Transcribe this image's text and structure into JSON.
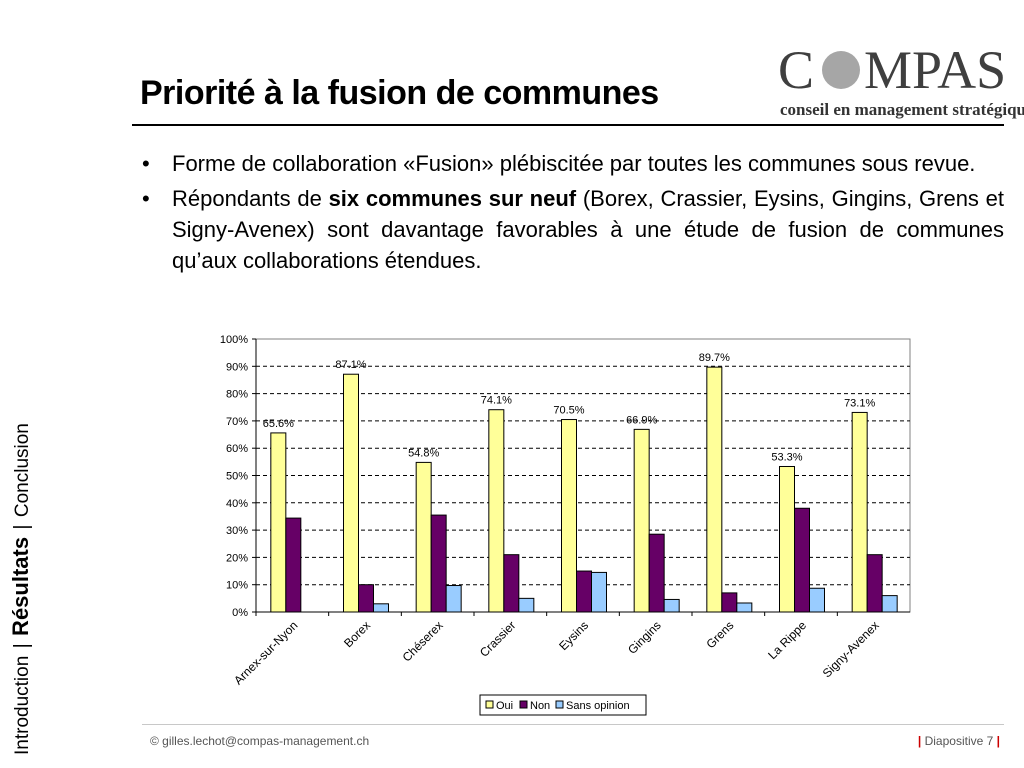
{
  "slide": {
    "title": "Priorité à la fusion de communes",
    "logo": {
      "wordmark": "COMPAS",
      "tagline": "conseil en management stratégique"
    },
    "bullets": [
      {
        "text_before": "Forme de collaboration «Fusion» plébiscitée par toutes les communes sous revue.",
        "bold": "",
        "text_after": ""
      },
      {
        "text_before": "Répondants de ",
        "bold": "six communes sur neuf",
        "text_after": " (Borex, Crassier, Eysins, Gingins, Grens et Signy-Avenex) sont davantage favorables à une étude de fusion de communes qu’aux collaborations étendues."
      }
    ],
    "bullet_glyph": "•",
    "side_nav": {
      "left": "Introduction",
      "active": "Résultats",
      "right": "Conclusion",
      "separator": "|"
    },
    "footer": {
      "contact": "© gilles.lechot@compas-management.ch",
      "slide_label": "Diapositive 7",
      "separator": "|"
    }
  },
  "chart_data": {
    "type": "bar",
    "categories": [
      "Arnex-sur-Nyon",
      "Borex",
      "Chéserex",
      "Crassier",
      "Eysins",
      "Gingins",
      "Grens",
      "La Rippe",
      "Signy-Avenex"
    ],
    "series": [
      {
        "name": "Oui",
        "color": "#ffff99",
        "values": [
          65.6,
          87.1,
          54.8,
          74.1,
          70.5,
          66.9,
          89.7,
          53.3,
          73.1
        ],
        "labels": [
          "65.6%",
          "87.1%",
          "54.8%",
          "74.1%",
          "70.5%",
          "66.9%",
          "89.7%",
          "53.3%",
          "73.1%"
        ]
      },
      {
        "name": "Non",
        "color": "#660066",
        "values": [
          34.4,
          10.0,
          35.5,
          21.0,
          15.0,
          28.5,
          7.0,
          38.0,
          21.0
        ]
      },
      {
        "name": "Sans opinion",
        "color": "#99ccff",
        "values": [
          0.0,
          3.0,
          9.7,
          5.0,
          14.5,
          4.6,
          3.3,
          8.7,
          6.0
        ]
      }
    ],
    "y_ticks": [
      "0%",
      "10%",
      "20%",
      "30%",
      "40%",
      "50%",
      "60%",
      "70%",
      "80%",
      "90%",
      "100%"
    ],
    "ylim": [
      0,
      100
    ],
    "grid": "dashed horizontal",
    "legend": "bottom-center"
  }
}
